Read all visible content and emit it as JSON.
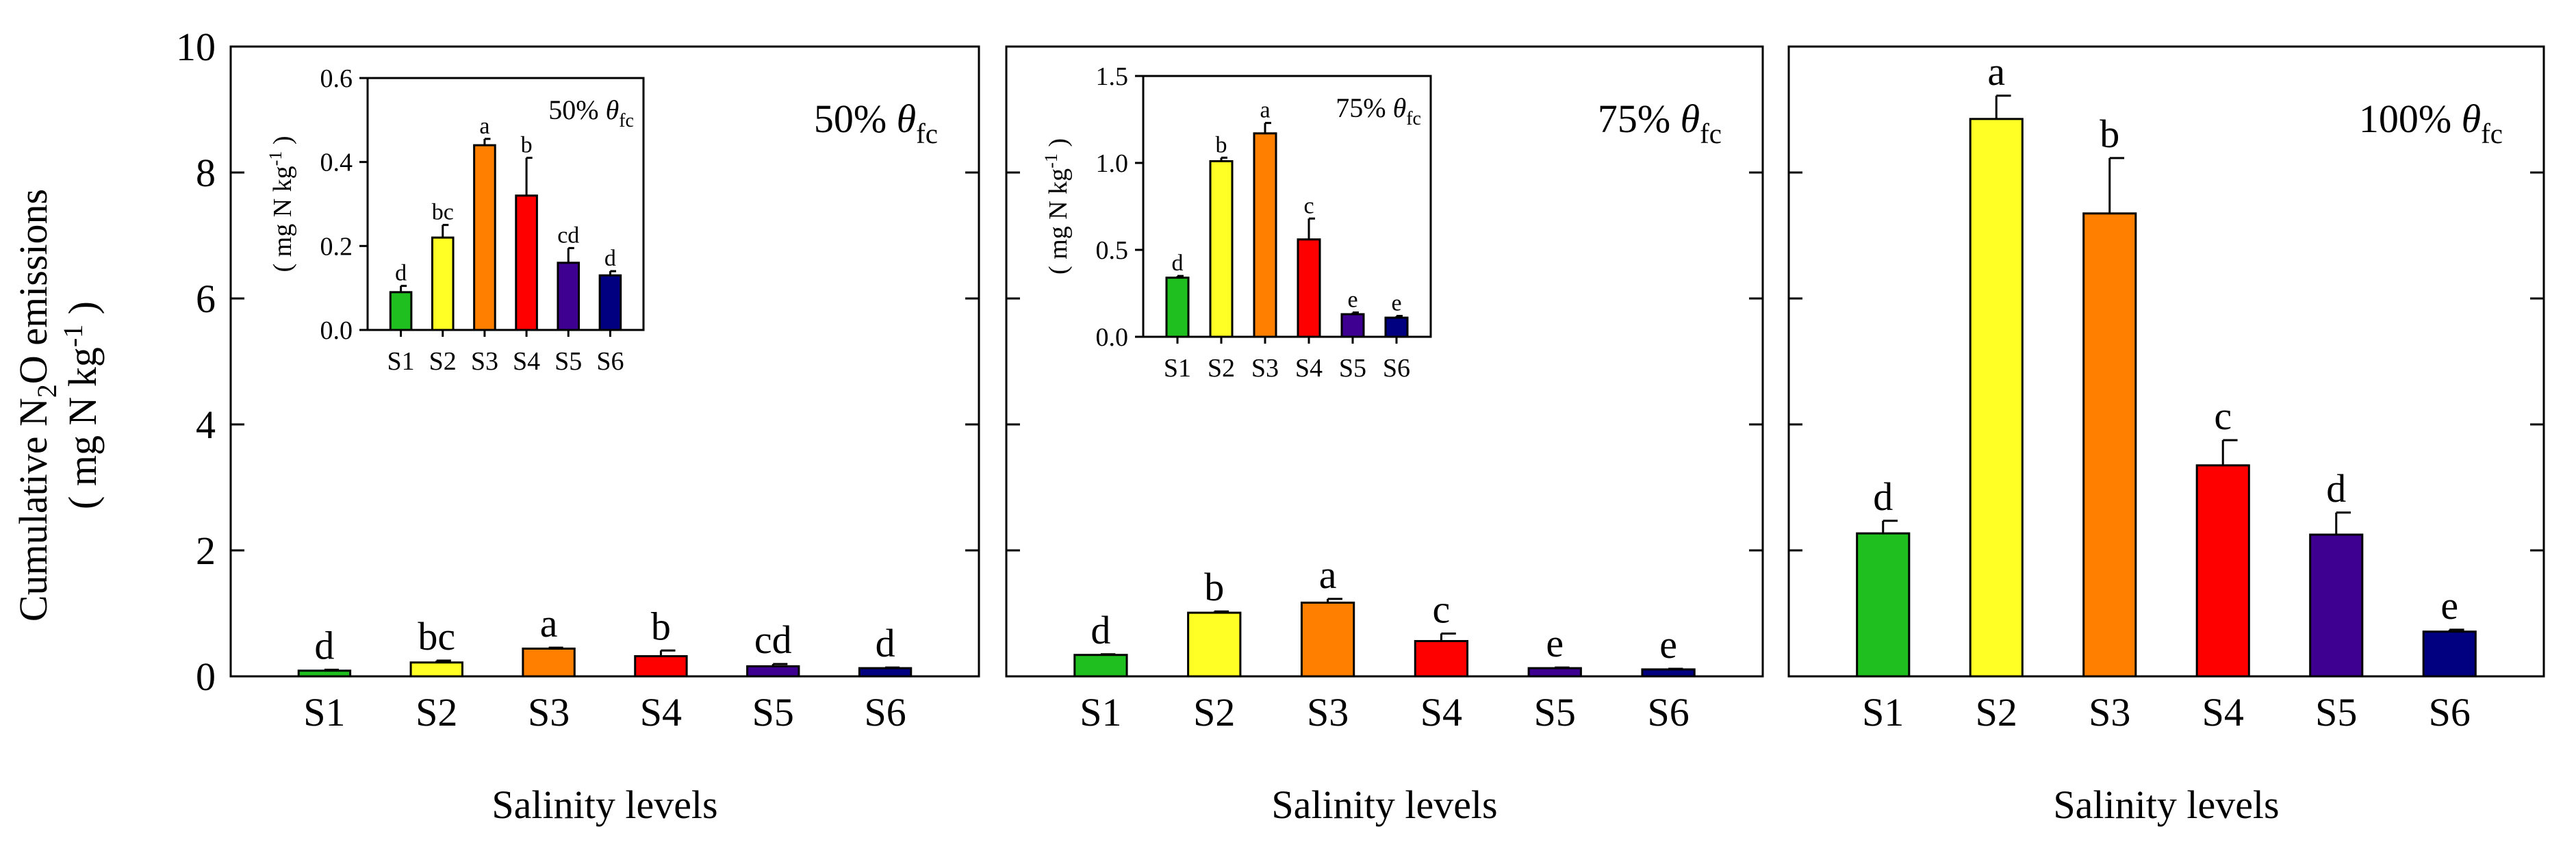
{
  "figure": {
    "y_axis_label_line1": "Cumulative N",
    "y_axis_label_sub": "2",
    "y_axis_label_line1_end": "O emissions",
    "y_axis_label_line2_open": "( mg N kg",
    "y_axis_label_line2_sup": "-1",
    "y_axis_label_line2_close": " )"
  },
  "chart_data": [
    {
      "type": "bar",
      "panel": "50% θfc",
      "title_prefix": "50% ",
      "title_symbol": "θ",
      "title_sub": "fc",
      "xlabel": "Salinity levels",
      "ylim": [
        0,
        10
      ],
      "yticks": [
        0,
        2,
        4,
        6,
        8,
        10
      ],
      "categories": [
        "S1",
        "S2",
        "S3",
        "S4",
        "S5",
        "S6"
      ],
      "values": [
        0.09,
        0.22,
        0.44,
        0.32,
        0.16,
        0.13
      ],
      "errors": [
        0.015,
        0.03,
        0.015,
        0.09,
        0.035,
        0.01
      ],
      "letters": [
        "d",
        "bc",
        "a",
        "b",
        "cd",
        "d"
      ],
      "colors": [
        "#1fbf1f",
        "#ffff26",
        "#ff8000",
        "#ff0000",
        "#3d0090",
        "#000080"
      ],
      "inset": {
        "ylim": [
          0,
          0.6
        ],
        "yticks": [
          0.0,
          0.2,
          0.4,
          0.6
        ],
        "ytick_labels": [
          "0.0",
          "0.2",
          "0.4",
          "0.6"
        ],
        "ylabel_open": "( mg N kg",
        "ylabel_sup": "-1",
        "ylabel_close": " )",
        "title_prefix": "50% ",
        "title_symbol": "θ",
        "title_sub": "fc"
      }
    },
    {
      "type": "bar",
      "panel": "75% θfc",
      "title_prefix": "75% ",
      "title_symbol": "θ",
      "title_sub": "fc",
      "xlabel": "Salinity levels",
      "ylim": [
        0,
        10
      ],
      "yticks": [
        0,
        2,
        4,
        6,
        8,
        10
      ],
      "categories": [
        "S1",
        "S2",
        "S3",
        "S4",
        "S5",
        "S6"
      ],
      "values": [
        0.34,
        1.01,
        1.17,
        0.56,
        0.13,
        0.11
      ],
      "errors": [
        0.01,
        0.02,
        0.06,
        0.12,
        0.01,
        0.01
      ],
      "letters": [
        "d",
        "b",
        "a",
        "c",
        "e",
        "e"
      ],
      "colors": [
        "#1fbf1f",
        "#ffff26",
        "#ff8000",
        "#ff0000",
        "#3d0090",
        "#000080"
      ],
      "inset": {
        "ylim": [
          0,
          1.5
        ],
        "yticks": [
          0.0,
          0.5,
          1.0,
          1.5
        ],
        "ytick_labels": [
          "0.0",
          "0.5",
          "1.0",
          "1.5"
        ],
        "ylabel_open": "( mg N kg",
        "ylabel_sup": "-1",
        "ylabel_close": " )",
        "title_prefix": "75% ",
        "title_symbol": "θ",
        "title_sub": "fc"
      }
    },
    {
      "type": "bar",
      "panel": "100% θfc",
      "title_prefix": "100% ",
      "title_symbol": "θ",
      "title_sub": "fc",
      "xlabel": "Salinity levels",
      "ylim": [
        0,
        10
      ],
      "yticks": [
        0,
        2,
        4,
        6,
        8,
        10
      ],
      "categories": [
        "S1",
        "S2",
        "S3",
        "S4",
        "S5",
        "S6"
      ],
      "values": [
        2.27,
        8.85,
        7.35,
        3.35,
        2.25,
        0.71
      ],
      "errors": [
        0.2,
        0.37,
        0.88,
        0.4,
        0.35,
        0.03
      ],
      "letters": [
        "d",
        "a",
        "b",
        "c",
        "d",
        "e"
      ],
      "colors": [
        "#1fbf1f",
        "#ffff26",
        "#ff8000",
        "#ff0000",
        "#3d0090",
        "#000080"
      ]
    }
  ]
}
